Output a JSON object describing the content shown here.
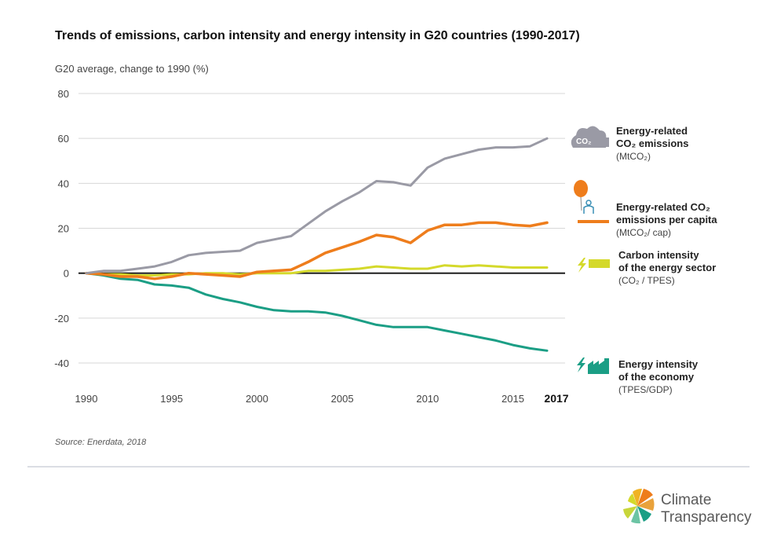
{
  "chart_data": {
    "type": "line",
    "title": "Trends of emissions, carbon intensity and energy intensity in G20 countries (1990-2017)",
    "ylabel": "G20 average, change to 1990 (%)",
    "xlabel": "",
    "xlim": [
      1990,
      2017
    ],
    "ylim": [
      -50,
      80
    ],
    "x_ticks": [
      1990,
      1995,
      2000,
      2005,
      2010,
      2015,
      2017
    ],
    "x_tick_labels": [
      "1990",
      "1995",
      "2000",
      "2005",
      "2010",
      "2015",
      "2017"
    ],
    "y_ticks": [
      80,
      60,
      40,
      20,
      0,
      -20,
      -40
    ],
    "y_tick_labels": [
      "80",
      "60",
      "40",
      "20",
      "0",
      "-20",
      "-40"
    ],
    "grid": true,
    "zero_line": true,
    "x": [
      1990,
      1991,
      1992,
      1993,
      1994,
      1995,
      1996,
      1997,
      1998,
      1999,
      2000,
      2001,
      2002,
      2003,
      2004,
      2005,
      2006,
      2007,
      2008,
      2009,
      2010,
      2011,
      2012,
      2013,
      2014,
      2015,
      2016,
      2017
    ],
    "series": [
      {
        "name_lines": [
          "Energy-related",
          "CO₂ emissions"
        ],
        "unit": "(MtCO₂)",
        "color": "#9a9aa5",
        "icon": "co2-cloud-icon",
        "values": [
          0,
          1,
          1,
          2,
          3,
          5,
          8,
          9,
          9.5,
          10,
          13.5,
          15,
          16.5,
          22,
          27.5,
          32,
          36,
          41,
          40.5,
          39,
          47,
          51,
          53,
          55,
          56,
          56,
          56.5,
          60
        ]
      },
      {
        "name_lines": [
          "Energy-related CO₂",
          "emissions per capita"
        ],
        "unit": "(MtCO₂/ cap)",
        "color": "#ee7d1c",
        "icon": "person-balloon-icon",
        "values": [
          0,
          -0.5,
          -1.5,
          -1.5,
          -2.5,
          -1.5,
          0,
          -0.5,
          -1,
          -1.5,
          0.5,
          1,
          1.5,
          5,
          9,
          11.5,
          14,
          17,
          16,
          13.5,
          19,
          21.5,
          21.5,
          22.5,
          22.5,
          21.5,
          21,
          22.5
        ]
      },
      {
        "name_lines": [
          "Carbon intensity",
          "of the energy sector"
        ],
        "unit": "(CO₂ / TPES)",
        "color": "#d4d92b",
        "icon": "lightning-bar-icon",
        "values": [
          0,
          -0.5,
          -0.5,
          -1,
          -1,
          -0.5,
          -0.5,
          0,
          0,
          -0.5,
          0,
          0,
          0,
          1,
          1,
          1.5,
          2,
          3,
          2.5,
          2,
          2,
          3.5,
          3,
          3.5,
          3,
          2.5,
          2.5,
          2.5
        ]
      },
      {
        "name_lines": [
          "Energy intensity",
          "of the economy"
        ],
        "unit": "(TPES/GDP)",
        "color": "#1b9e85",
        "icon": "factory-lightning-icon",
        "values": [
          0,
          -1,
          -2.5,
          -3,
          -5,
          -5.5,
          -6.5,
          -9.5,
          -11.5,
          -13,
          -15,
          -16.5,
          -17,
          -17,
          -17.5,
          -19,
          -21,
          -23,
          -24,
          -24,
          -24,
          -25.5,
          -27,
          -28.5,
          -30,
          -32,
          -33.5,
          -34.5
        ]
      }
    ]
  },
  "source": "Source: Enerdata, 2018",
  "logo": {
    "line1": "Climate",
    "line2": "Transparency",
    "icon": "sun-wheel-logo-icon"
  },
  "co2_icon_text": "CO₂"
}
